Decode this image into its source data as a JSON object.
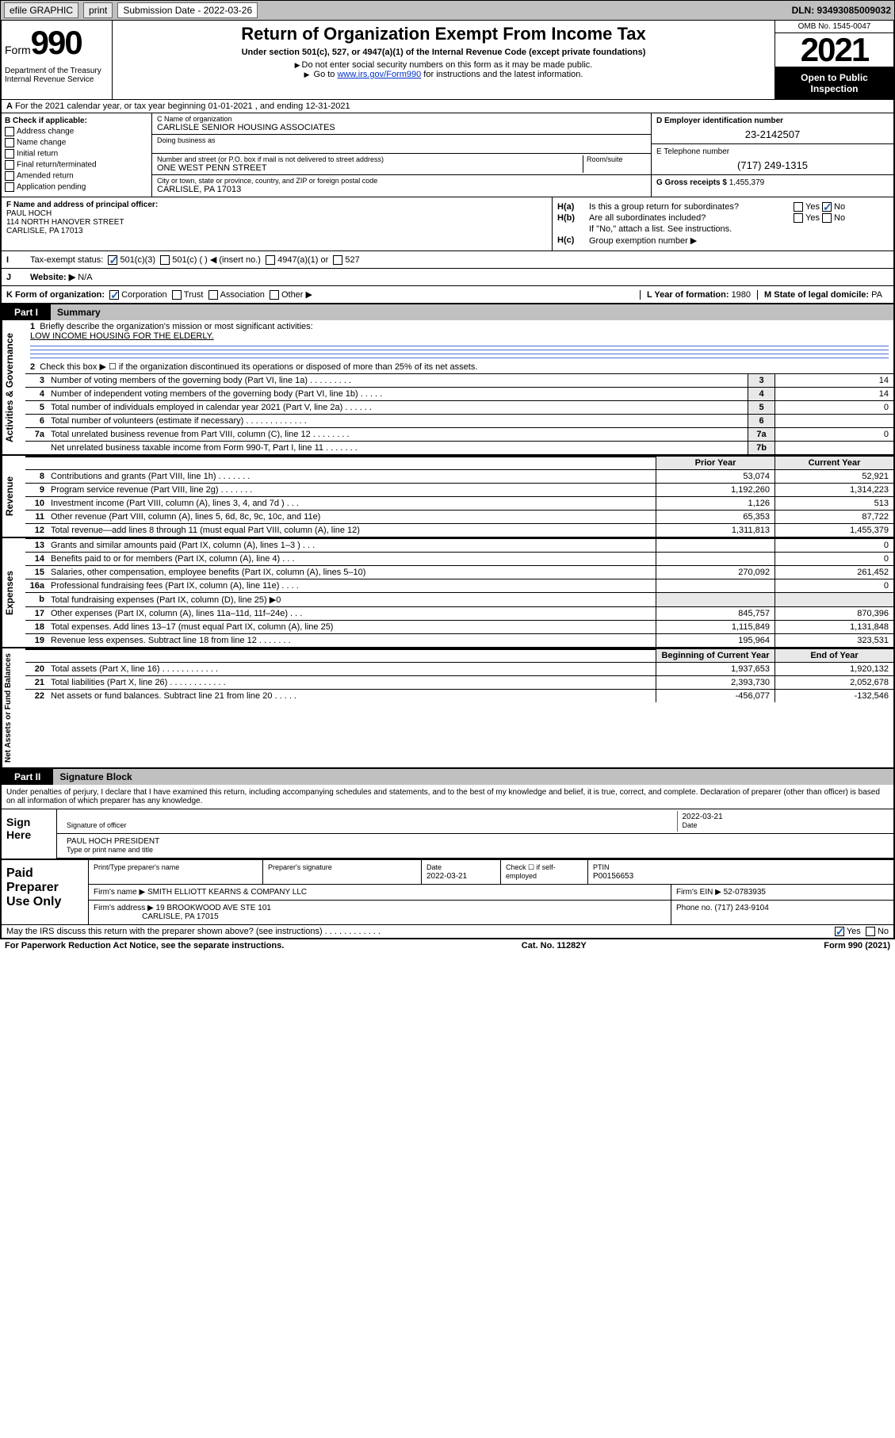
{
  "topbar": {
    "efile": "efile GRAPHIC",
    "print": "print",
    "subdate_label": "Submission Date - 2022-03-26",
    "dln_label": "DLN: 93493085009032"
  },
  "header": {
    "form_word": "Form",
    "form_num": "990",
    "dept": "Department of the Treasury Internal Revenue Service",
    "title": "Return of Organization Exempt From Income Tax",
    "sub": "Under section 501(c), 527, or 4947(a)(1) of the Internal Revenue Code (except private foundations)",
    "note1": "Do not enter social security numbers on this form as it may be made public.",
    "note2_pre": "Go to ",
    "note2_link": "www.irs.gov/Form990",
    "note2_post": " for instructions and the latest information.",
    "omb": "OMB No. 1545-0047",
    "year": "2021",
    "inspect": "Open to Public Inspection"
  },
  "row_a": "For the 2021 calendar year, or tax year beginning 01-01-2021   , and ending 12-31-2021",
  "col_b": {
    "title": "B Check if applicable:",
    "items": [
      "Address change",
      "Name change",
      "Initial return",
      "Final return/terminated",
      "Amended return",
      "Application pending"
    ]
  },
  "col_c": {
    "name_label": "C Name of organization",
    "name": "CARLISLE SENIOR HOUSING ASSOCIATES",
    "dba_label": "Doing business as",
    "addr_label": "Number and street (or P.O. box if mail is not delivered to street address)",
    "room_label": "Room/suite",
    "addr": "ONE WEST PENN STREET",
    "city_label": "City or town, state or province, country, and ZIP or foreign postal code",
    "city": "CARLISLE, PA  17013"
  },
  "col_de": {
    "d_label": "D Employer identification number",
    "d_val": "23-2142507",
    "e_label": "E Telephone number",
    "e_val": "(717) 249-1315",
    "g_label": "G Gross receipts $",
    "g_val": "1,455,379"
  },
  "col_f": {
    "label": "F Name and address of principal officer:",
    "name": "PAUL HOCH",
    "addr1": "114 NORTH HANOVER STREET",
    "addr2": "CARLISLE, PA  17013"
  },
  "col_h": {
    "ha_label": "H(a)",
    "ha_txt": "Is this a group return for subordinates?",
    "hb_label": "H(b)",
    "hb_txt": "Are all subordinates included?",
    "hb_note": "If \"No,\" attach a list. See instructions.",
    "hc_label": "H(c)",
    "hc_txt": "Group exemption number ▶",
    "yes": "Yes",
    "no": "No"
  },
  "row_i": {
    "label": "Tax-exempt status:",
    "opt1": "501(c)(3)",
    "opt2": "501(c) (  ) ◀ (insert no.)",
    "opt3": "4947(a)(1) or",
    "opt4": "527"
  },
  "row_j": {
    "label": "Website: ▶",
    "val": "N/A"
  },
  "row_k": {
    "label": "K Form of organization:",
    "opts": [
      "Corporation",
      "Trust",
      "Association",
      "Other ▶"
    ],
    "l_label": "L Year of formation:",
    "l_val": "1980",
    "m_label": "M State of legal domicile:",
    "m_val": "PA"
  },
  "part1": {
    "tab": "Part I",
    "title": "Summary",
    "q1": "Briefly describe the organization's mission or most significant activities:",
    "q1_val": "LOW INCOME HOUSING FOR THE ELDERLY.",
    "q2": "Check this box ▶ ☐  if the organization discontinued its operations or disposed of more than 25% of its net assets.",
    "vbar_gov": "Activities & Governance",
    "vbar_rev": "Revenue",
    "vbar_exp": "Expenses",
    "vbar_net": "Net Assets or Fund Balances",
    "py_label": "Prior Year",
    "cy_label": "Current Year",
    "boy_label": "Beginning of Current Year",
    "eoy_label": "End of Year",
    "lines_gov": [
      {
        "n": "3",
        "d": "Number of voting members of the governing body (Part VI, line 1a)  .    .    .    .    .    .    .    .    .",
        "b": "3",
        "v": "14"
      },
      {
        "n": "4",
        "d": "Number of independent voting members of the governing body (Part VI, line 1b)   .    .    .    .    .",
        "b": "4",
        "v": "14"
      },
      {
        "n": "5",
        "d": "Total number of individuals employed in calendar year 2021 (Part V, line 2a)   .    .    .    .    .    .",
        "b": "5",
        "v": "0"
      },
      {
        "n": "6",
        "d": "Total number of volunteers (estimate if necessary)   .    .    .    .    .    .    .    .    .    .    .    .    .",
        "b": "6",
        "v": ""
      },
      {
        "n": "7a",
        "d": "Total unrelated business revenue from Part VIII, column (C), line 12   .    .    .    .    .    .    .    .",
        "b": "7a",
        "v": "0"
      },
      {
        "n": "",
        "d": "Net unrelated business taxable income from Form 990-T, Part I, line 11   .    .    .    .    .    .    .",
        "b": "7b",
        "v": ""
      }
    ],
    "lines_rev": [
      {
        "n": "8",
        "d": "Contributions and grants (Part VIII, line 1h)   .    .    .    .    .    .    .",
        "py": "53,074",
        "cy": "52,921"
      },
      {
        "n": "9",
        "d": "Program service revenue (Part VIII, line 2g)   .    .    .    .    .    .    .",
        "py": "1,192,260",
        "cy": "1,314,223"
      },
      {
        "n": "10",
        "d": "Investment income (Part VIII, column (A), lines 3, 4, and 7d )   .    .    .",
        "py": "1,126",
        "cy": "513"
      },
      {
        "n": "11",
        "d": "Other revenue (Part VIII, column (A), lines 5, 6d, 8c, 9c, 10c, and 11e)",
        "py": "65,353",
        "cy": "87,722"
      },
      {
        "n": "12",
        "d": "Total revenue—add lines 8 through 11 (must equal Part VIII, column (A), line 12)",
        "py": "1,311,813",
        "cy": "1,455,379"
      }
    ],
    "lines_exp": [
      {
        "n": "13",
        "d": "Grants and similar amounts paid (Part IX, column (A), lines 1–3 )   .    .    .",
        "py": "",
        "cy": "0"
      },
      {
        "n": "14",
        "d": "Benefits paid to or for members (Part IX, column (A), line 4)   .    .    .",
        "py": "",
        "cy": "0"
      },
      {
        "n": "15",
        "d": "Salaries, other compensation, employee benefits (Part IX, column (A), lines 5–10)",
        "py": "270,092",
        "cy": "261,452"
      },
      {
        "n": "16a",
        "d": "Professional fundraising fees (Part IX, column (A), line 11e)   .    .    .    .",
        "py": "",
        "cy": "0"
      },
      {
        "n": "b",
        "d": "Total fundraising expenses (Part IX, column (D), line 25) ▶0",
        "py": "",
        "cy": ""
      },
      {
        "n": "17",
        "d": "Other expenses (Part IX, column (A), lines 11a–11d, 11f–24e)   .    .    .",
        "py": "845,757",
        "cy": "870,396"
      },
      {
        "n": "18",
        "d": "Total expenses. Add lines 13–17 (must equal Part IX, column (A), line 25)",
        "py": "1,115,849",
        "cy": "1,131,848"
      },
      {
        "n": "19",
        "d": "Revenue less expenses. Subtract line 18 from line 12   .    .    .    .    .    .    .",
        "py": "195,964",
        "cy": "323,531"
      }
    ],
    "lines_net": [
      {
        "n": "20",
        "d": "Total assets (Part X, line 16)   .    .    .    .    .    .    .    .    .    .    .    .",
        "py": "1,937,653",
        "cy": "1,920,132"
      },
      {
        "n": "21",
        "d": "Total liabilities (Part X, line 26)   .    .    .    .    .    .    .    .    .    .    .    .",
        "py": "2,393,730",
        "cy": "2,052,678"
      },
      {
        "n": "22",
        "d": "Net assets or fund balances. Subtract line 21 from line 20   .    .    .    .    .",
        "py": "-456,077",
        "cy": "-132,546"
      }
    ]
  },
  "part2": {
    "tab": "Part II",
    "title": "Signature Block",
    "decl": "Under penalties of perjury, I declare that I have examined this return, including accompanying schedules and statements, and to the best of my knowledge and belief, it is true, correct, and complete. Declaration of preparer (other than officer) is based on all information of which preparer has any knowledge.",
    "sign_here": "Sign Here",
    "sig_label": "Signature of officer",
    "date_label": "Date",
    "date_val": "2022-03-21",
    "name_label": "Type or print name and title",
    "name_val": "PAUL HOCH  PRESIDENT",
    "paid": "Paid Preparer Use Only",
    "prep_name_label": "Print/Type preparer's name",
    "prep_sig_label": "Preparer's signature",
    "prep_date_label": "Date",
    "prep_date": "2022-03-21",
    "self_label": "Check ☐ if self-employed",
    "ptin_label": "PTIN",
    "ptin": "P00156653",
    "firm_name_label": "Firm's name    ▶",
    "firm_name": "SMITH ELLIOTT KEARNS & COMPANY LLC",
    "firm_ein_label": "Firm's EIN ▶",
    "firm_ein": "52-0783935",
    "firm_addr_label": "Firm's address ▶",
    "firm_addr1": "19 BROOKWOOD AVE STE 101",
    "firm_addr2": "CARLISLE, PA  17015",
    "phone_label": "Phone no.",
    "phone": "(717) 243-9104",
    "discuss": "May the IRS discuss this return with the preparer shown above? (see instructions)   .    .    .    .    .    .    .    .    .    .    .    .",
    "yes": "Yes",
    "no": "No"
  },
  "footer": {
    "left": "For Paperwork Reduction Act Notice, see the separate instructions.",
    "mid": "Cat. No. 11282Y",
    "right": "Form 990 (2021)"
  },
  "colors": {
    "topbar_bg": "#c0c0c0",
    "link": "#0033cc",
    "check": "#1a5fb4",
    "rule": "#4a6fd4",
    "shade": "#e8e8e8"
  }
}
